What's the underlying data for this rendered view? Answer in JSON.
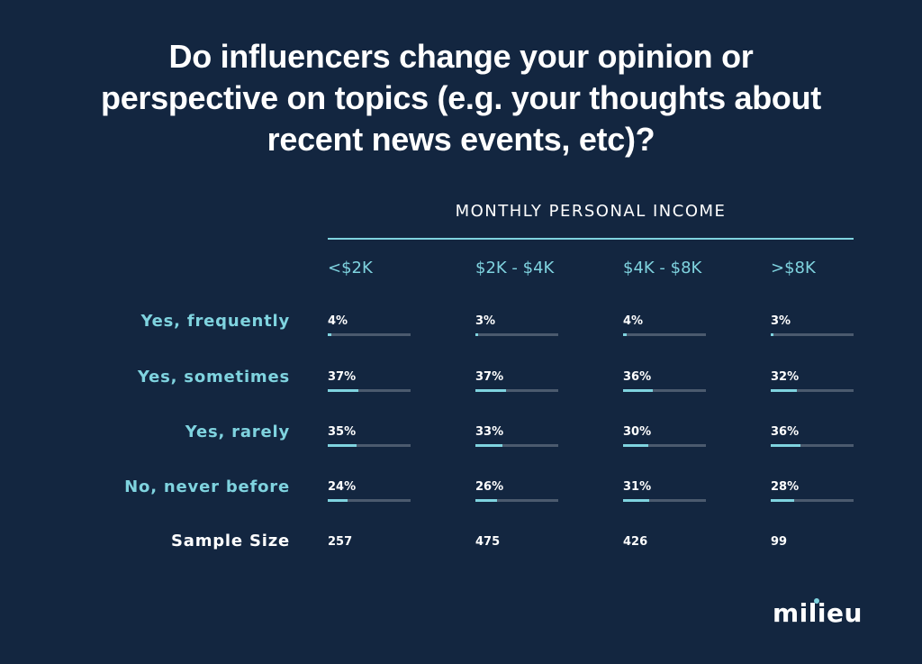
{
  "title_lines": [
    "Do influencers change your opinion or",
    "perspective on topics (e.g. your thoughts about",
    "recent news events, etc)?"
  ],
  "logo_text": "milieu",
  "colors": {
    "background": "#132640",
    "accent": "#7fd3df",
    "track": "#4b5a6e",
    "text": "#ffffff"
  },
  "chart_data": {
    "type": "table",
    "title": "Do influencers change your opinion or perspective on topics (e.g. your thoughts about recent news events, etc)?",
    "group_header": "MONTHLY PERSONAL INCOME",
    "columns": [
      "<$2K",
      "$2K - $4K",
      "$4K - $8K",
      ">$8K"
    ],
    "rows": [
      {
        "label": "Yes, frequently",
        "values": [
          4,
          3,
          4,
          3
        ],
        "display": [
          "4%",
          "3%",
          "4%",
          "3%"
        ]
      },
      {
        "label": "Yes, sometimes",
        "values": [
          37,
          37,
          36,
          32
        ],
        "display": [
          "37%",
          "37%",
          "36%",
          "32%"
        ]
      },
      {
        "label": "Yes, rarely",
        "values": [
          35,
          33,
          30,
          36
        ],
        "display": [
          "35%",
          "33%",
          "30%",
          "36%"
        ]
      },
      {
        "label": "No, never before",
        "values": [
          24,
          26,
          31,
          28
        ],
        "display": [
          "24%",
          "26%",
          "31%",
          "28%"
        ]
      }
    ],
    "sample_size_label": "Sample Size",
    "sample_sizes": [
      "257",
      "475",
      "426",
      "99"
    ]
  }
}
